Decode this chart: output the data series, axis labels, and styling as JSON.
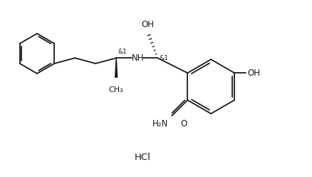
{
  "background_color": "#ffffff",
  "line_color": "#1a1a1a",
  "text_color": "#1a1a1a",
  "font_size": 8.5,
  "line_width": 1.3,
  "figsize": [
    4.38,
    2.48
  ],
  "dpi": 100,
  "hcl_text": "HCl",
  "oh_text": "OH",
  "nh_text": "NH",
  "amide_n": "H₂N",
  "amide_o": "O",
  "stereo": "&1"
}
